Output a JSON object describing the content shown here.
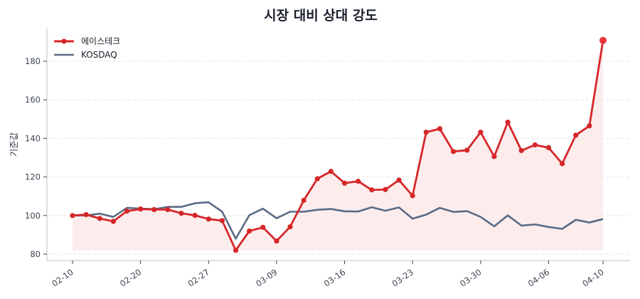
{
  "chart_data": {
    "type": "line",
    "title": "시장 대비 상대 강도",
    "xlabel": "",
    "ylabel": "기준값",
    "ylim": [
      76.5,
      196
    ],
    "yticks": [
      80,
      100,
      120,
      140,
      160,
      180
    ],
    "xtick_labels": [
      "02-10",
      "02-20",
      "02-27",
      "03-09",
      "03-16",
      "03-23",
      "03-30",
      "04-06",
      "04-10"
    ],
    "xtick_indices": [
      0,
      5,
      10,
      15,
      20,
      25,
      30,
      35,
      39
    ],
    "grid": {
      "axis": "y",
      "style": "dashed"
    },
    "legend_position": "upper left",
    "fill_between": {
      "series": "에이스테크",
      "baseline": "series_min",
      "color": "#fbe9e9"
    },
    "highlight_last_point": true,
    "series": [
      {
        "name": "에이스테크",
        "color": "#d62628",
        "marker": "circle",
        "values": [
          100.0,
          100.5,
          98.5,
          97.0,
          102.3,
          103.4,
          103.1,
          103.1,
          101.2,
          100.1,
          98.2,
          97.4,
          82.0,
          92.0,
          93.9,
          86.8,
          94.2,
          107.9,
          119.1,
          122.9,
          116.8,
          117.8,
          113.3,
          113.5,
          118.4,
          110.3,
          143.2,
          145.0,
          133.2,
          133.9,
          143.2,
          130.6,
          148.4,
          133.7,
          136.6,
          135.2,
          126.9,
          141.7,
          146.5,
          190.8
        ]
      },
      {
        "name": "KOSDAQ",
        "color": "#5a6b85",
        "marker": "none",
        "values": [
          100.0,
          100.1,
          101.0,
          99.3,
          104.0,
          103.6,
          103.3,
          104.5,
          104.5,
          106.4,
          106.9,
          102.0,
          88.0,
          100.2,
          103.6,
          98.6,
          102.0,
          102.0,
          103.0,
          103.4,
          102.2,
          102.1,
          104.3,
          102.5,
          104.2,
          98.4,
          100.5,
          104.0,
          101.9,
          102.3,
          99.3,
          94.4,
          100.1,
          94.8,
          95.4,
          94.1,
          93.1,
          97.8,
          96.4,
          98.2
        ]
      }
    ]
  },
  "legend": {
    "items": [
      {
        "label": "에이스테크",
        "color": "#d62628"
      },
      {
        "label": "KOSDAQ",
        "color": "#5a6b85"
      }
    ]
  }
}
